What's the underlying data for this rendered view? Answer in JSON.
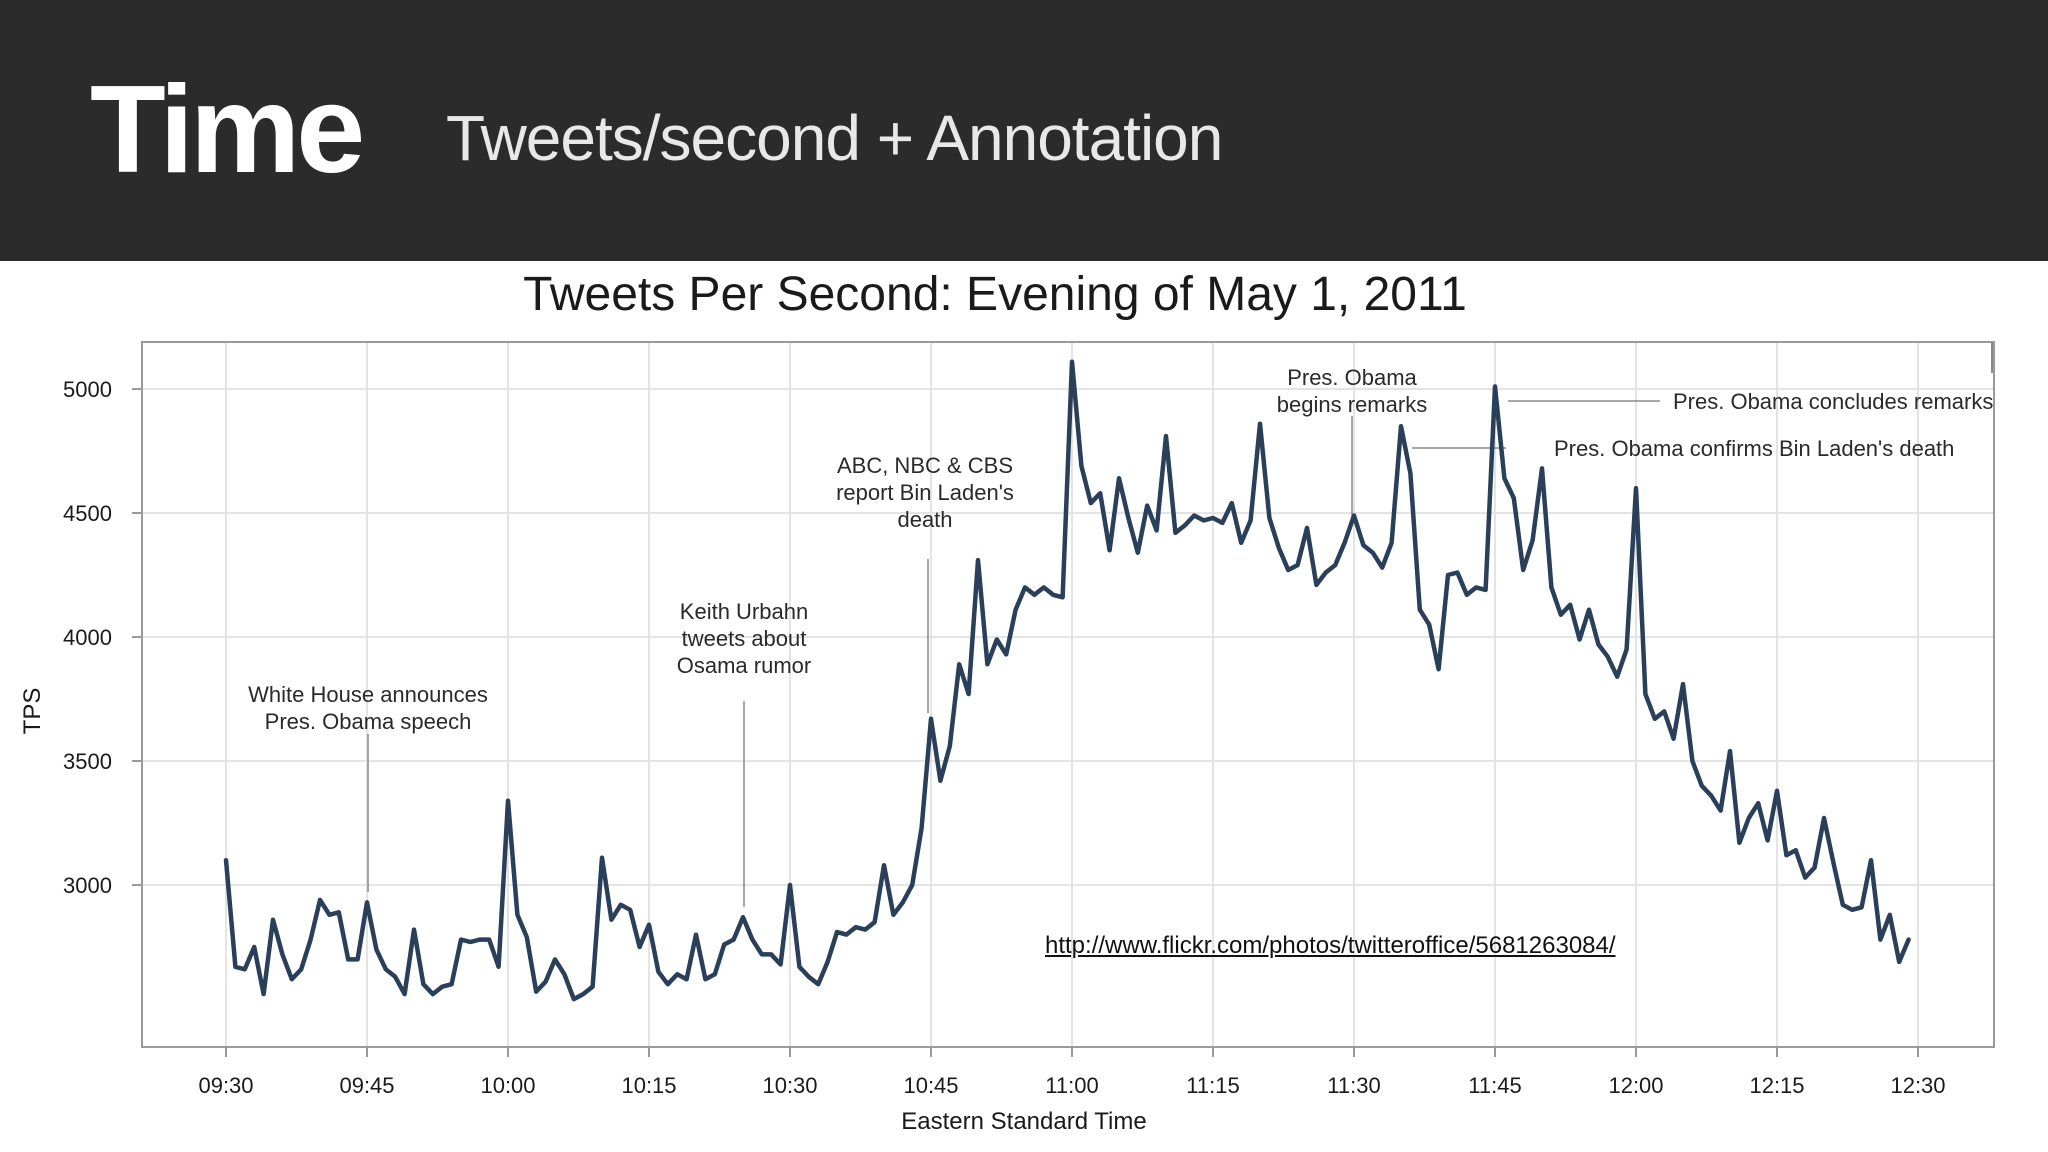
{
  "header": {
    "title": "Time",
    "subtitle": "Tweets/second + Annotation"
  },
  "source_link": "http://www.flickr.com/photos/twitteroffice/5681263084/",
  "colors": {
    "header_bg": "#2b2b2b",
    "line": "#2a3f5a",
    "grid": "#e4e4e4",
    "annotation_line": "#8a8a8a"
  },
  "chart_data": {
    "type": "line",
    "title": "Tweets Per Second: Evening of May 1, 2011",
    "xlabel": "Eastern Standard Time",
    "ylabel": "TPS",
    "grid": true,
    "ylim": [
      2470,
      5230
    ],
    "xlim": [
      "09:30",
      "12:30"
    ],
    "y_ticks": [
      3000,
      3500,
      4000,
      4500,
      5000
    ],
    "x_ticks": [
      "09:30",
      "09:45",
      "10:00",
      "10:15",
      "10:30",
      "10:45",
      "11:00",
      "11:15",
      "11:30",
      "11:45",
      "12:00",
      "12:15",
      "12:30"
    ],
    "series": [
      {
        "values": [
          [
            "09:30",
            3100
          ],
          [
            "09:31",
            2670
          ],
          [
            "09:32",
            2660
          ],
          [
            "09:33",
            2750
          ],
          [
            "09:34",
            2560
          ],
          [
            "09:35",
            2860
          ],
          [
            "09:36",
            2720
          ],
          [
            "09:37",
            2620
          ],
          [
            "09:38",
            2660
          ],
          [
            "09:39",
            2780
          ],
          [
            "09:40",
            2940
          ],
          [
            "09:41",
            2880
          ],
          [
            "09:42",
            2890
          ],
          [
            "09:43",
            2700
          ],
          [
            "09:44",
            2700
          ],
          [
            "09:45",
            2930
          ],
          [
            "09:46",
            2740
          ],
          [
            "09:47",
            2660
          ],
          [
            "09:48",
            2630
          ],
          [
            "09:49",
            2560
          ],
          [
            "09:50",
            2820
          ],
          [
            "09:51",
            2600
          ],
          [
            "09:52",
            2560
          ],
          [
            "09:53",
            2590
          ],
          [
            "09:54",
            2600
          ],
          [
            "09:55",
            2780
          ],
          [
            "09:56",
            2770
          ],
          [
            "09:57",
            2780
          ],
          [
            "09:58",
            2780
          ],
          [
            "09:59",
            2670
          ],
          [
            "10:00",
            3340
          ],
          [
            "10:01",
            2880
          ],
          [
            "10:02",
            2790
          ],
          [
            "10:03",
            2570
          ],
          [
            "10:04",
            2610
          ],
          [
            "10:05",
            2700
          ],
          [
            "10:06",
            2640
          ],
          [
            "10:07",
            2540
          ],
          [
            "10:08",
            2560
          ],
          [
            "10:09",
            2590
          ],
          [
            "10:10",
            3110
          ],
          [
            "10:11",
            2860
          ],
          [
            "10:12",
            2920
          ],
          [
            "10:13",
            2900
          ],
          [
            "10:14",
            2750
          ],
          [
            "10:15",
            2840
          ],
          [
            "10:16",
            2650
          ],
          [
            "10:17",
            2600
          ],
          [
            "10:18",
            2640
          ],
          [
            "10:19",
            2620
          ],
          [
            "10:20",
            2800
          ],
          [
            "10:21",
            2620
          ],
          [
            "10:22",
            2640
          ],
          [
            "10:23",
            2760
          ],
          [
            "10:24",
            2780
          ],
          [
            "10:25",
            2870
          ],
          [
            "10:26",
            2780
          ],
          [
            "10:27",
            2720
          ],
          [
            "10:28",
            2720
          ],
          [
            "10:29",
            2680
          ],
          [
            "10:30",
            3000
          ],
          [
            "10:31",
            2670
          ],
          [
            "10:32",
            2630
          ],
          [
            "10:33",
            2600
          ],
          [
            "10:34",
            2690
          ],
          [
            "10:35",
            2810
          ],
          [
            "10:36",
            2800
          ],
          [
            "10:37",
            2830
          ],
          [
            "10:38",
            2820
          ],
          [
            "10:39",
            2850
          ],
          [
            "10:40",
            3080
          ],
          [
            "10:41",
            2880
          ],
          [
            "10:42",
            2930
          ],
          [
            "10:43",
            3000
          ],
          [
            "10:44",
            3230
          ],
          [
            "10:45",
            3670
          ],
          [
            "10:46",
            3420
          ],
          [
            "10:47",
            3560
          ],
          [
            "10:48",
            3890
          ],
          [
            "10:49",
            3770
          ],
          [
            "10:50",
            4310
          ],
          [
            "10:51",
            3890
          ],
          [
            "10:52",
            3990
          ],
          [
            "10:53",
            3930
          ],
          [
            "10:54",
            4110
          ],
          [
            "10:55",
            4200
          ],
          [
            "10:56",
            4170
          ],
          [
            "10:57",
            4200
          ],
          [
            "10:58",
            4170
          ],
          [
            "10:59",
            4160
          ],
          [
            "11:00",
            5110
          ],
          [
            "11:01",
            4690
          ],
          [
            "11:02",
            4540
          ],
          [
            "11:03",
            4580
          ],
          [
            "11:04",
            4350
          ],
          [
            "11:05",
            4640
          ],
          [
            "11:06",
            4480
          ],
          [
            "11:07",
            4340
          ],
          [
            "11:08",
            4530
          ],
          [
            "11:09",
            4430
          ],
          [
            "11:10",
            4810
          ],
          [
            "11:11",
            4420
          ],
          [
            "11:12",
            4450
          ],
          [
            "11:13",
            4490
          ],
          [
            "11:14",
            4470
          ],
          [
            "11:15",
            4480
          ],
          [
            "11:16",
            4460
          ],
          [
            "11:17",
            4540
          ],
          [
            "11:18",
            4380
          ],
          [
            "11:19",
            4470
          ],
          [
            "11:20",
            4860
          ],
          [
            "11:21",
            4480
          ],
          [
            "11:22",
            4360
          ],
          [
            "11:23",
            4270
          ],
          [
            "11:24",
            4290
          ],
          [
            "11:25",
            4440
          ],
          [
            "11:26",
            4210
          ],
          [
            "11:27",
            4260
          ],
          [
            "11:28",
            4290
          ],
          [
            "11:29",
            4380
          ],
          [
            "11:30",
            4490
          ],
          [
            "11:31",
            4370
          ],
          [
            "11:32",
            4340
          ],
          [
            "11:33",
            4280
          ],
          [
            "11:34",
            4380
          ],
          [
            "11:35",
            4850
          ],
          [
            "11:36",
            4660
          ],
          [
            "11:37",
            4110
          ],
          [
            "11:38",
            4050
          ],
          [
            "11:39",
            3870
          ],
          [
            "11:40",
            4250
          ],
          [
            "11:41",
            4260
          ],
          [
            "11:42",
            4170
          ],
          [
            "11:43",
            4200
          ],
          [
            "11:44",
            4190
          ],
          [
            "11:45",
            5010
          ],
          [
            "11:46",
            4640
          ],
          [
            "11:47",
            4560
          ],
          [
            "11:48",
            4270
          ],
          [
            "11:49",
            4390
          ],
          [
            "11:50",
            4680
          ],
          [
            "11:51",
            4200
          ],
          [
            "11:52",
            4090
          ],
          [
            "11:53",
            4130
          ],
          [
            "11:54",
            3990
          ],
          [
            "11:55",
            4110
          ],
          [
            "11:56",
            3970
          ],
          [
            "11:57",
            3920
          ],
          [
            "11:58",
            3840
          ],
          [
            "11:59",
            3950
          ],
          [
            "12:00",
            4600
          ],
          [
            "12:01",
            3770
          ],
          [
            "12:02",
            3670
          ],
          [
            "12:03",
            3700
          ],
          [
            "12:04",
            3590
          ],
          [
            "12:05",
            3810
          ],
          [
            "12:06",
            3500
          ],
          [
            "12:07",
            3400
          ],
          [
            "12:08",
            3360
          ],
          [
            "12:09",
            3300
          ],
          [
            "12:10",
            3540
          ],
          [
            "12:11",
            3170
          ],
          [
            "12:12",
            3270
          ],
          [
            "12:13",
            3330
          ],
          [
            "12:14",
            3180
          ],
          [
            "12:15",
            3380
          ],
          [
            "12:16",
            3120
          ],
          [
            "12:17",
            3140
          ],
          [
            "12:18",
            3030
          ],
          [
            "12:19",
            3070
          ],
          [
            "12:20",
            3270
          ],
          [
            "12:21",
            3090
          ],
          [
            "12:22",
            2920
          ],
          [
            "12:23",
            2900
          ],
          [
            "12:24",
            2910
          ],
          [
            "12:25",
            3100
          ],
          [
            "12:26",
            2780
          ],
          [
            "12:27",
            2880
          ],
          [
            "12:28",
            2690
          ],
          [
            "12:29",
            2780
          ]
        ]
      }
    ],
    "annotations": [
      {
        "text": [
          "White House announces",
          "Pres. Obama speech"
        ],
        "time": "09:45"
      },
      {
        "text": [
          "Keith Urbahn",
          "tweets about",
          "Osama rumor"
        ],
        "time": "10:25"
      },
      {
        "text": [
          "ABC, NBC & CBS",
          "report Bin Laden's",
          "death"
        ],
        "time": "10:45"
      },
      {
        "text": [
          "Pres. Obama",
          "begins remarks"
        ],
        "time": "11:30"
      },
      {
        "text": [
          "Pres. Obama confirms Bin Laden's death"
        ],
        "time": "11:35"
      },
      {
        "text": [
          "Pres. Obama concludes remarks"
        ],
        "time": "11:45"
      }
    ]
  }
}
